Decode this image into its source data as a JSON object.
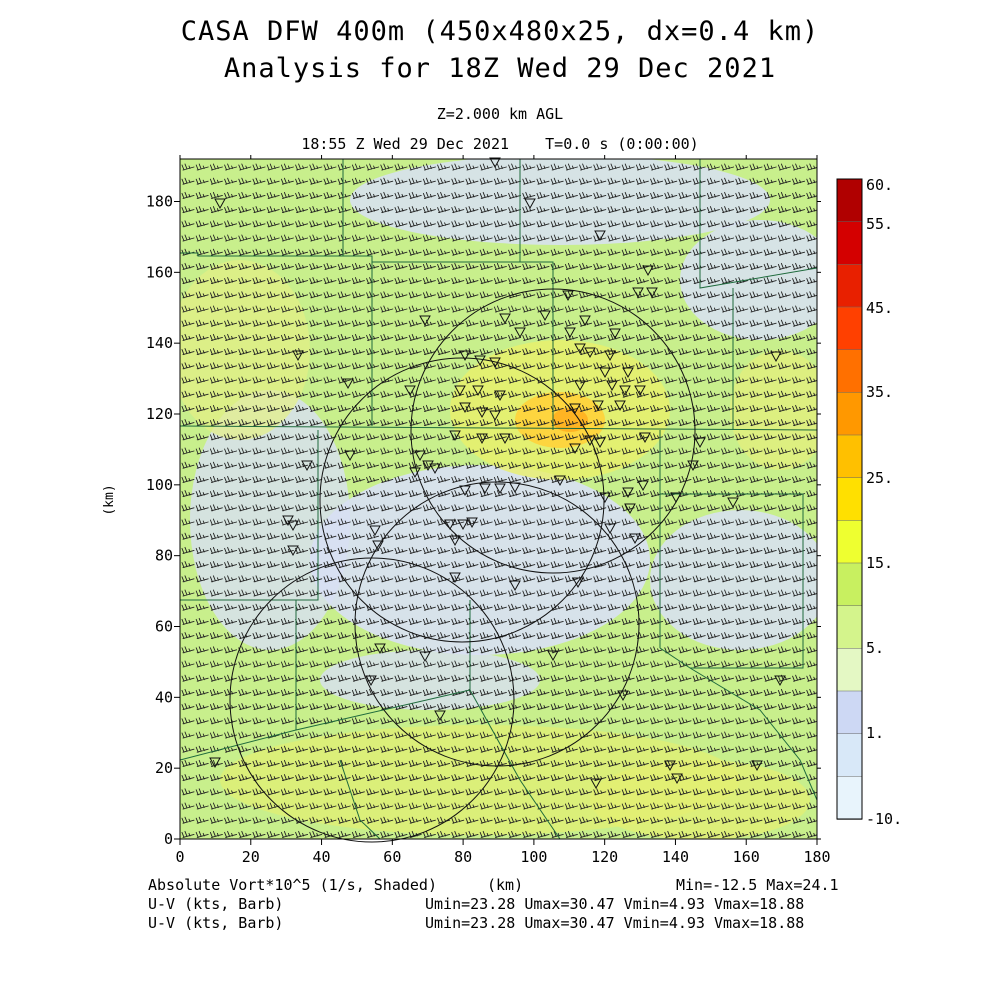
{
  "header": {
    "title_line1": "CASA DFW 400m (450x480x25, dx=0.4 km)",
    "title_line2": "Analysis for 18Z Wed 29 Dec 2021",
    "level": "Z=2.000 km AGL",
    "time": "18:55 Z Wed 29 Dec 2021    T=0.0 s (0:00:00)"
  },
  "axes": {
    "x_ticks": [
      "0",
      "20",
      "40",
      "60",
      "80",
      "100",
      "120",
      "140",
      "160",
      "180"
    ],
    "y_ticks": [
      "0",
      "20",
      "40",
      "60",
      "80",
      "100",
      "120",
      "140",
      "160",
      "180"
    ],
    "x_label": "(km)",
    "y_label": "(km)",
    "x_range": [
      0,
      180
    ],
    "y_range": [
      0,
      192
    ]
  },
  "colorbar": {
    "labels": [
      "60.",
      "55.",
      "45.",
      "35.",
      "25.",
      "15.",
      "5.",
      "1.",
      "-10."
    ],
    "colors": [
      "#b00000",
      "#d40000",
      "#e82000",
      "#ff4000",
      "#ff7000",
      "#ff9800",
      "#ffc000",
      "#ffe000",
      "#eeff30",
      "#c8f060",
      "#d4f48c",
      "#e4f8c4",
      "#cdd8f4",
      "#d8e8f8",
      "#e8f4fc"
    ]
  },
  "footer": {
    "field1": "Absolute Vort*10^5 (1/s, Shaded)",
    "field2": "U-V (kts, Barb)",
    "field3": "U-V (kts, Barb)",
    "units": "(km)",
    "minmax": "Min=-12.5 Max=24.1",
    "uv1": "Umin=23.28 Umax=30.47 Vmin=4.93 Vmax=18.88",
    "uv2": "Umin=23.28 Umax=30.47 Vmin=4.93 Vmax=18.88"
  },
  "map": {
    "radar_rings_km": [
      [
        64,
        38,
        40
      ],
      [
        98,
        128,
        40
      ],
      [
        79,
        101,
        40
      ],
      [
        91,
        64,
        40
      ]
    ],
    "station_marker": "triangle-down"
  }
}
